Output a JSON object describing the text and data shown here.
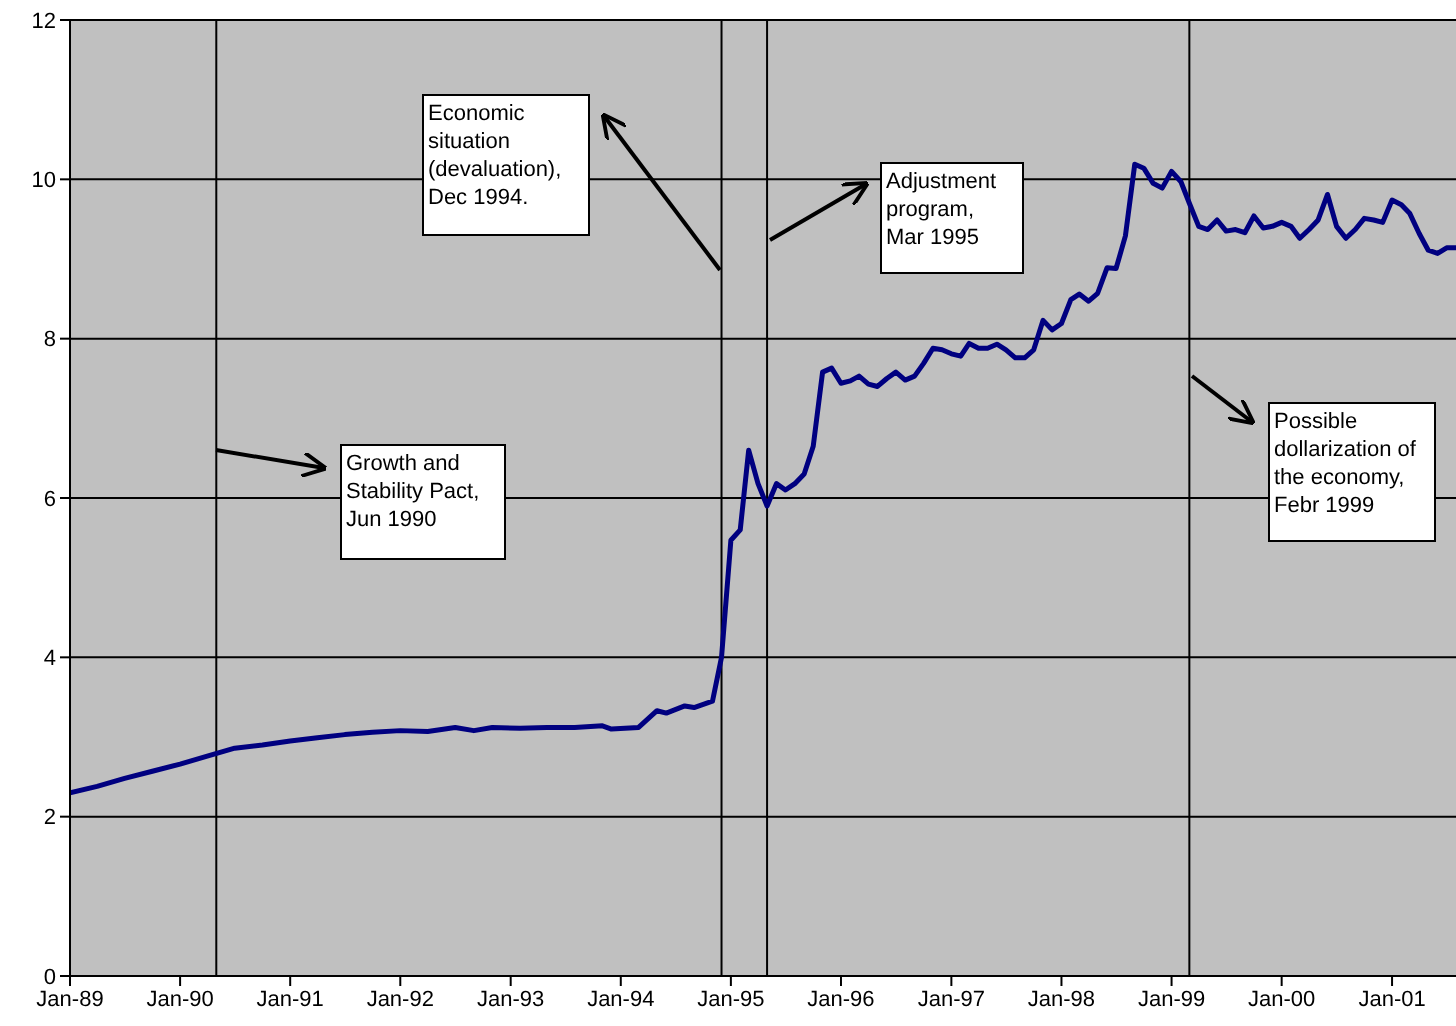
{
  "chart_data": {
    "type": "line",
    "marker": "none",
    "grid": "y",
    "xlim": [
      "1989-01",
      "2001-08"
    ],
    "ylim": [
      0,
      12
    ],
    "yticks": [
      0,
      2,
      4,
      6,
      8,
      10,
      12
    ],
    "xticks": [
      {
        "value": "1989-01",
        "label": "Jan-89"
      },
      {
        "value": "1990-01",
        "label": "Jan-90"
      },
      {
        "value": "1991-01",
        "label": "Jan-91"
      },
      {
        "value": "1992-01",
        "label": "Jan-92"
      },
      {
        "value": "1993-01",
        "label": "Jan-93"
      },
      {
        "value": "1994-01",
        "label": "Jan-94"
      },
      {
        "value": "1995-01",
        "label": "Jan-95"
      },
      {
        "value": "1996-01",
        "label": "Jan-96"
      },
      {
        "value": "1997-01",
        "label": "Jan-97"
      },
      {
        "value": "1998-01",
        "label": "Jan-98"
      },
      {
        "value": "1999-01",
        "label": "Jan-99"
      },
      {
        "value": "2000-01",
        "label": "Jan-00"
      },
      {
        "value": "2001-01",
        "label": "Jan-01"
      }
    ],
    "x": [
      "1989-01",
      "1989-04",
      "1989-07",
      "1989-10",
      "1990-01",
      "1990-04",
      "1990-07",
      "1990-10",
      "1991-01",
      "1991-04",
      "1991-07",
      "1991-10",
      "1992-01",
      "1992-04",
      "1992-07",
      "1992-09",
      "1992-11",
      "1993-02",
      "1993-05",
      "1993-08",
      "1993-11",
      "1993-12",
      "1994-03",
      "1994-05",
      "1994-06",
      "1994-08",
      "1994-09",
      "1994-11",
      "1994-12",
      "1995-01",
      "1995-02",
      "1995-03",
      "1995-04",
      "1995-05",
      "1995-06",
      "1995-07",
      "1995-08",
      "1995-09",
      "1995-10",
      "1995-11",
      "1995-12",
      "1996-01",
      "1996-02",
      "1996-03",
      "1996-04",
      "1996-05",
      "1996-06",
      "1996-07",
      "1996-08",
      "1996-09",
      "1996-10",
      "1996-11",
      "1996-12",
      "1997-01",
      "1997-02",
      "1997-03",
      "1997-04",
      "1997-05",
      "1997-06",
      "1997-07",
      "1997-08",
      "1997-09",
      "1997-10",
      "1997-11",
      "1997-12",
      "1998-01",
      "1998-02",
      "1998-03",
      "1998-04",
      "1998-05",
      "1998-06",
      "1998-07",
      "1998-08",
      "1998-09",
      "1998-10",
      "1998-11",
      "1998-12",
      "1999-01",
      "1999-02",
      "1999-03",
      "1999-04",
      "1999-05",
      "1999-06",
      "1999-07",
      "1999-08",
      "1999-09",
      "1999-10",
      "1999-11",
      "1999-12",
      "2000-01",
      "2000-02",
      "2000-03",
      "2000-04",
      "2000-05",
      "2000-06",
      "2000-07",
      "2000-08",
      "2000-09",
      "2000-10",
      "2000-11",
      "2000-12",
      "2001-01",
      "2001-02",
      "2001-03",
      "2001-04",
      "2001-05",
      "2001-06",
      "2001-07",
      "2001-08"
    ],
    "series": [
      {
        "color": "#000080",
        "values": [
          2.3,
          2.38,
          2.48,
          2.57,
          2.66,
          2.76,
          2.86,
          2.9,
          2.95,
          2.99,
          3.03,
          3.06,
          3.08,
          3.07,
          3.12,
          3.08,
          3.12,
          3.11,
          3.12,
          3.12,
          3.14,
          3.1,
          3.12,
          3.33,
          3.3,
          3.39,
          3.37,
          3.45,
          4.0,
          5.47,
          5.6,
          6.6,
          6.18,
          5.9,
          6.18,
          6.1,
          6.18,
          6.3,
          6.65,
          7.58,
          7.63,
          7.44,
          7.47,
          7.53,
          7.43,
          7.4,
          7.5,
          7.58,
          7.48,
          7.53,
          7.69,
          7.88,
          7.86,
          7.81,
          7.78,
          7.94,
          7.88,
          7.88,
          7.93,
          7.86,
          7.76,
          7.76,
          7.86,
          8.23,
          8.11,
          8.19,
          8.49,
          8.56,
          8.47,
          8.57,
          8.89,
          8.88,
          9.29,
          10.19,
          10.14,
          9.95,
          9.89,
          10.1,
          9.97,
          9.7,
          9.41,
          9.37,
          9.49,
          9.35,
          9.37,
          9.33,
          9.54,
          9.39,
          9.41,
          9.46,
          9.41,
          9.26,
          9.37,
          9.49,
          9.81,
          9.41,
          9.26,
          9.37,
          9.51,
          9.49,
          9.46,
          9.74,
          9.68,
          9.57,
          9.32,
          9.11,
          9.07,
          9.14,
          9.14
        ]
      }
    ],
    "ref_lines": [
      {
        "axis": "x",
        "value": "1990-05",
        "color": "#000000"
      },
      {
        "axis": "x",
        "value": "1994-12",
        "color": "#000000"
      },
      {
        "axis": "x",
        "value": "1995-05",
        "color": "#000000"
      },
      {
        "axis": "x",
        "value": "1999-03",
        "color": "#000000"
      }
    ],
    "annotations": [
      "Economic situation (devaluation), Dec 1994.",
      "Adjustment program, Mar 1995",
      "Growth and Stability Pact, Jun 1990",
      "Possible dollarization of the economy, Febr 1999"
    ]
  }
}
